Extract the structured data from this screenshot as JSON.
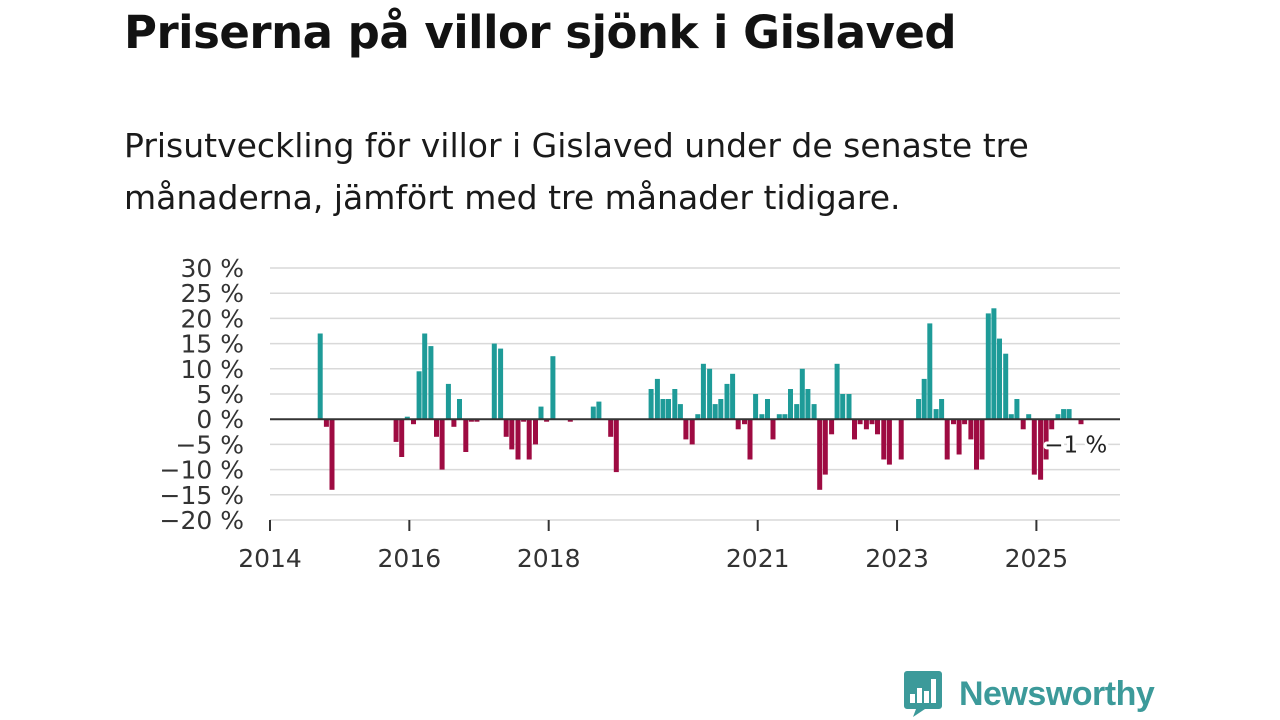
{
  "header": {
    "title": "Priserna på villor sjönk i Gislaved",
    "subtitle": "Prisutveckling för villor i Gislaved under de senaste tre månaderna, jämfört med tre månader tidigare."
  },
  "brand": {
    "name": "Newsworthy"
  },
  "colors": {
    "positive": "#1e9b98",
    "negative": "#9e0b42",
    "brand": "#3c9a9a",
    "grid": "#d9d9d9",
    "zero_line": "#333333"
  },
  "chart_data": {
    "type": "bar",
    "title": "Priserna på villor sjönk i Gislaved",
    "subtitle": "Prisutveckling för villor i Gislaved under de senaste tre månaderna, jämfört med tre månader tidigare.",
    "xlabel": "",
    "ylabel": "",
    "unit": "%",
    "ylim": [
      -20,
      30
    ],
    "yticks": [
      30,
      25,
      20,
      15,
      10,
      5,
      0,
      -5,
      -10,
      -15,
      -20
    ],
    "ytick_labels": [
      "30 %",
      "25 %",
      "20 %",
      "15 %",
      "10 %",
      "5 %",
      "0 %",
      "−5 %",
      "−10 %",
      "−15 %",
      "−20 %"
    ],
    "xlim": [
      2014,
      2026.2
    ],
    "xticks": [
      2014,
      2016,
      2018,
      2021,
      2023,
      2025
    ],
    "xtick_labels": [
      "2014",
      "2016",
      "2018",
      "2021",
      "2023",
      "2025"
    ],
    "grid": true,
    "annotation": {
      "x": 2025.6,
      "value": -1,
      "text": "−1 %"
    },
    "x": [
      2014.72,
      2014.81,
      2014.89,
      2015.81,
      2015.89,
      2015.97,
      2016.06,
      2016.14,
      2016.22,
      2016.31,
      2016.39,
      2016.47,
      2016.56,
      2016.64,
      2016.72,
      2016.81,
      2016.89,
      2016.97,
      2017.22,
      2017.31,
      2017.39,
      2017.47,
      2017.56,
      2017.64,
      2017.72,
      2017.81,
      2017.89,
      2017.97,
      2018.06,
      2018.31,
      2018.64,
      2018.72,
      2018.89,
      2018.97,
      2019.47,
      2019.56,
      2019.64,
      2019.72,
      2019.81,
      2019.89,
      2019.97,
      2020.06,
      2020.14,
      2020.22,
      2020.31,
      2020.39,
      2020.47,
      2020.56,
      2020.64,
      2020.72,
      2020.81,
      2020.89,
      2020.97,
      2021.06,
      2021.14,
      2021.22,
      2021.31,
      2021.39,
      2021.47,
      2021.56,
      2021.64,
      2021.72,
      2021.81,
      2021.89,
      2021.97,
      2022.06,
      2022.14,
      2022.22,
      2022.31,
      2022.39,
      2022.47,
      2022.56,
      2022.64,
      2022.72,
      2022.81,
      2022.89,
      2023.06,
      2023.31,
      2023.39,
      2023.47,
      2023.56,
      2023.64,
      2023.72,
      2023.81,
      2023.89,
      2023.97,
      2024.06,
      2024.14,
      2024.22,
      2024.31,
      2024.39,
      2024.47,
      2024.56,
      2024.64,
      2024.72,
      2024.81,
      2024.89,
      2024.97,
      2025.06,
      2025.14,
      2025.22,
      2025.31,
      2025.39,
      2025.47,
      2025.56,
      2025.64
    ],
    "values": [
      17,
      -1.5,
      -14,
      -4.5,
      -7.5,
      0.5,
      -1,
      9.5,
      17,
      14.5,
      -3.5,
      -10,
      7,
      -1.5,
      4,
      -6.5,
      -0.5,
      -0.5,
      15,
      14,
      -3.5,
      -6,
      -8,
      -0.5,
      -8,
      -5,
      2.5,
      -0.5,
      12.5,
      -0.5,
      2.5,
      3.5,
      -3.5,
      -10.5,
      6,
      8,
      4,
      4,
      6,
      3,
      -4,
      -5,
      1,
      11,
      10,
      3,
      4,
      7,
      9,
      -2,
      -1,
      -8,
      5,
      1,
      4,
      -4,
      1,
      1,
      6,
      3,
      10,
      6,
      3,
      -14,
      -11,
      -3,
      11,
      5,
      5,
      -4,
      -1,
      -2,
      -1,
      -3,
      -8,
      -9,
      -8,
      4,
      8,
      19,
      2,
      4,
      -8,
      -1,
      -7,
      -1,
      -4,
      -10,
      -8,
      21,
      22,
      16,
      13,
      1,
      4,
      -2,
      1,
      -11,
      -12,
      -8,
      -2,
      1,
      2,
      2,
      0,
      -1
    ]
  }
}
